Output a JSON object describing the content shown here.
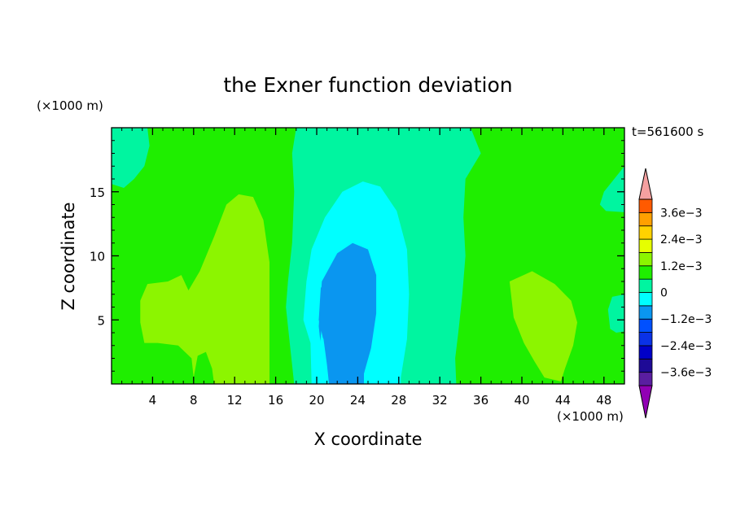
{
  "chart_data": {
    "type": "contour",
    "title": "the Exner function deviation",
    "xlabel": "X coordinate",
    "ylabel": "Z coordinate",
    "x_unit": "(×1000 m)",
    "y_unit": "(×1000 m)",
    "time_label": "t=561600 s",
    "xlim": [
      0,
      50
    ],
    "ylim": [
      0,
      20
    ],
    "x_ticks": [
      4,
      8,
      12,
      16,
      20,
      24,
      28,
      32,
      36,
      40,
      44,
      48
    ],
    "y_ticks": [
      5,
      10,
      15
    ],
    "colorbar": {
      "levels": [
        -0.0042,
        -0.0036,
        -0.003,
        -0.0024,
        -0.0018,
        -0.0012,
        -0.0006,
        0,
        0.0006,
        0.0012,
        0.0018,
        0.0024,
        0.003,
        0.0036,
        0.0042
      ],
      "labels": [
        {
          "text": "3.6e−3",
          "value": 0.0036
        },
        {
          "text": "2.4e−3",
          "value": 0.0024
        },
        {
          "text": "1.2e−3",
          "value": 0.0012
        },
        {
          "text": "0",
          "value": 0
        },
        {
          "text": "−1.2e−3",
          "value": -0.0012
        },
        {
          "text": "−2.4e−3",
          "value": -0.0024
        },
        {
          "text": "−3.6e−3",
          "value": -0.0036
        }
      ],
      "colors": [
        "#9100b4",
        "#5a1ea0",
        "#1e0a96",
        "#0000c8",
        "#0a32e6",
        "#0050ff",
        "#0a96f0",
        "#00ffff",
        "#00f5a0",
        "#1fee00",
        "#8cf500",
        "#e6ff00",
        "#ffd200",
        "#ffa000",
        "#ff5a00",
        "#ff1e00",
        "#f5a0a0"
      ]
    },
    "fill_colors": {
      "near_zero_positive": "#1fee00",
      "positive_weak": "#8cf500",
      "negative_weak": "#00f5a0",
      "negative_mid": "#00ffff",
      "negative_strong": "#0a96f0"
    },
    "regions": [
      {
        "level": "positive_weak",
        "points": [
          [
            2.8,
            6.5
          ],
          [
            3.5,
            7.8
          ],
          [
            5.5,
            8
          ],
          [
            6.8,
            8.5
          ],
          [
            7.5,
            7.3
          ],
          [
            8.6,
            8.8
          ],
          [
            10,
            11.5
          ],
          [
            11.2,
            14
          ],
          [
            12.4,
            14.8
          ],
          [
            13.8,
            14.6
          ],
          [
            14.8,
            12.8
          ],
          [
            15.4,
            9.5
          ],
          [
            15.4,
            0
          ],
          [
            10,
            0
          ],
          [
            9.8,
            1.2
          ],
          [
            9.2,
            2.5
          ],
          [
            8.4,
            2.2
          ],
          [
            8,
            0.5
          ],
          [
            7.8,
            2
          ],
          [
            6.5,
            3
          ],
          [
            4.5,
            3.2
          ],
          [
            3.2,
            3.2
          ],
          [
            2.8,
            4.8
          ]
        ]
      },
      {
        "level": "positive_weak",
        "points": [
          [
            38.8,
            8
          ],
          [
            41,
            8.8
          ],
          [
            43.2,
            7.8
          ],
          [
            44.8,
            6.5
          ],
          [
            45.4,
            4.8
          ],
          [
            45,
            3
          ],
          [
            44.2,
            1.2
          ],
          [
            43.8,
            0.2
          ],
          [
            42.2,
            0.5
          ],
          [
            41.2,
            1.8
          ],
          [
            40.2,
            3.2
          ],
          [
            39.2,
            5.2
          ]
        ]
      },
      {
        "level": "negative_weak",
        "points": [
          [
            18,
            20
          ],
          [
            35,
            20
          ],
          [
            36,
            18
          ],
          [
            34.5,
            16
          ],
          [
            34.3,
            13
          ],
          [
            34.5,
            10
          ],
          [
            34.2,
            7
          ],
          [
            33.8,
            4
          ],
          [
            33.5,
            2
          ],
          [
            33.6,
            0
          ],
          [
            17.8,
            0
          ],
          [
            17.4,
            3
          ],
          [
            17,
            6
          ],
          [
            17.2,
            8
          ],
          [
            17.6,
            11
          ],
          [
            17.8,
            15
          ],
          [
            17.6,
            18
          ]
        ]
      },
      {
        "level": "negative_weak",
        "points": [
          [
            0,
            20
          ],
          [
            3.5,
            20
          ],
          [
            3.7,
            18.6
          ],
          [
            3.2,
            17
          ],
          [
            2.2,
            16
          ],
          [
            1.2,
            15.3
          ],
          [
            0,
            15.6
          ]
        ]
      },
      {
        "level": "negative_weak",
        "points": [
          [
            50,
            17
          ],
          [
            49,
            16
          ],
          [
            48,
            15
          ],
          [
            47.6,
            14
          ],
          [
            48.2,
            13.5
          ],
          [
            50,
            13.4
          ]
        ]
      },
      {
        "level": "negative_weak",
        "points": [
          [
            50,
            7
          ],
          [
            48.8,
            6.8
          ],
          [
            48.4,
            5.8
          ],
          [
            48.6,
            4.3
          ],
          [
            49.2,
            4
          ],
          [
            50,
            4.1
          ]
        ]
      },
      {
        "level": "negative_mid",
        "points": [
          [
            19,
            8
          ],
          [
            19.5,
            10.5
          ],
          [
            20.8,
            13
          ],
          [
            22.5,
            15
          ],
          [
            24.5,
            15.8
          ],
          [
            26.2,
            15.4
          ],
          [
            27.8,
            13.5
          ],
          [
            28.8,
            10.5
          ],
          [
            29,
            7
          ],
          [
            28.8,
            3.5
          ],
          [
            28.2,
            0.5
          ],
          [
            28.2,
            0
          ],
          [
            19.5,
            0
          ],
          [
            19.4,
            3.2
          ],
          [
            18.7,
            5
          ]
        ]
      },
      {
        "level": "negative_strong",
        "points": [
          [
            20.2,
            4.5
          ],
          [
            20.5,
            8
          ],
          [
            22,
            10.2
          ],
          [
            23.5,
            11
          ],
          [
            25,
            10.5
          ],
          [
            25.8,
            8.5
          ],
          [
            25.8,
            5.5
          ],
          [
            25.3,
            2.8
          ],
          [
            24.6,
            0.8
          ],
          [
            24.6,
            0
          ],
          [
            20.8,
            0
          ],
          [
            20.5,
            2.2
          ]
        ]
      },
      {
        "level": "negative_mid",
        "points": [
          [
            19.5,
            0
          ],
          [
            20.2,
            2.2
          ],
          [
            20.5,
            4.5
          ],
          [
            21,
            1.5
          ],
          [
            21.2,
            0
          ]
        ]
      },
      {
        "level": "negative_strong",
        "points": [
          [
            20.2,
            5
          ],
          [
            20.4,
            7.5
          ],
          [
            21.4,
            8.5
          ],
          [
            22.8,
            8.6
          ],
          [
            23.8,
            7.6
          ],
          [
            24.3,
            5.6
          ],
          [
            24.0,
            3.6
          ],
          [
            23.0,
            2.4
          ],
          [
            21.6,
            2.2
          ],
          [
            20.6,
            3.6
          ]
        ]
      }
    ]
  }
}
